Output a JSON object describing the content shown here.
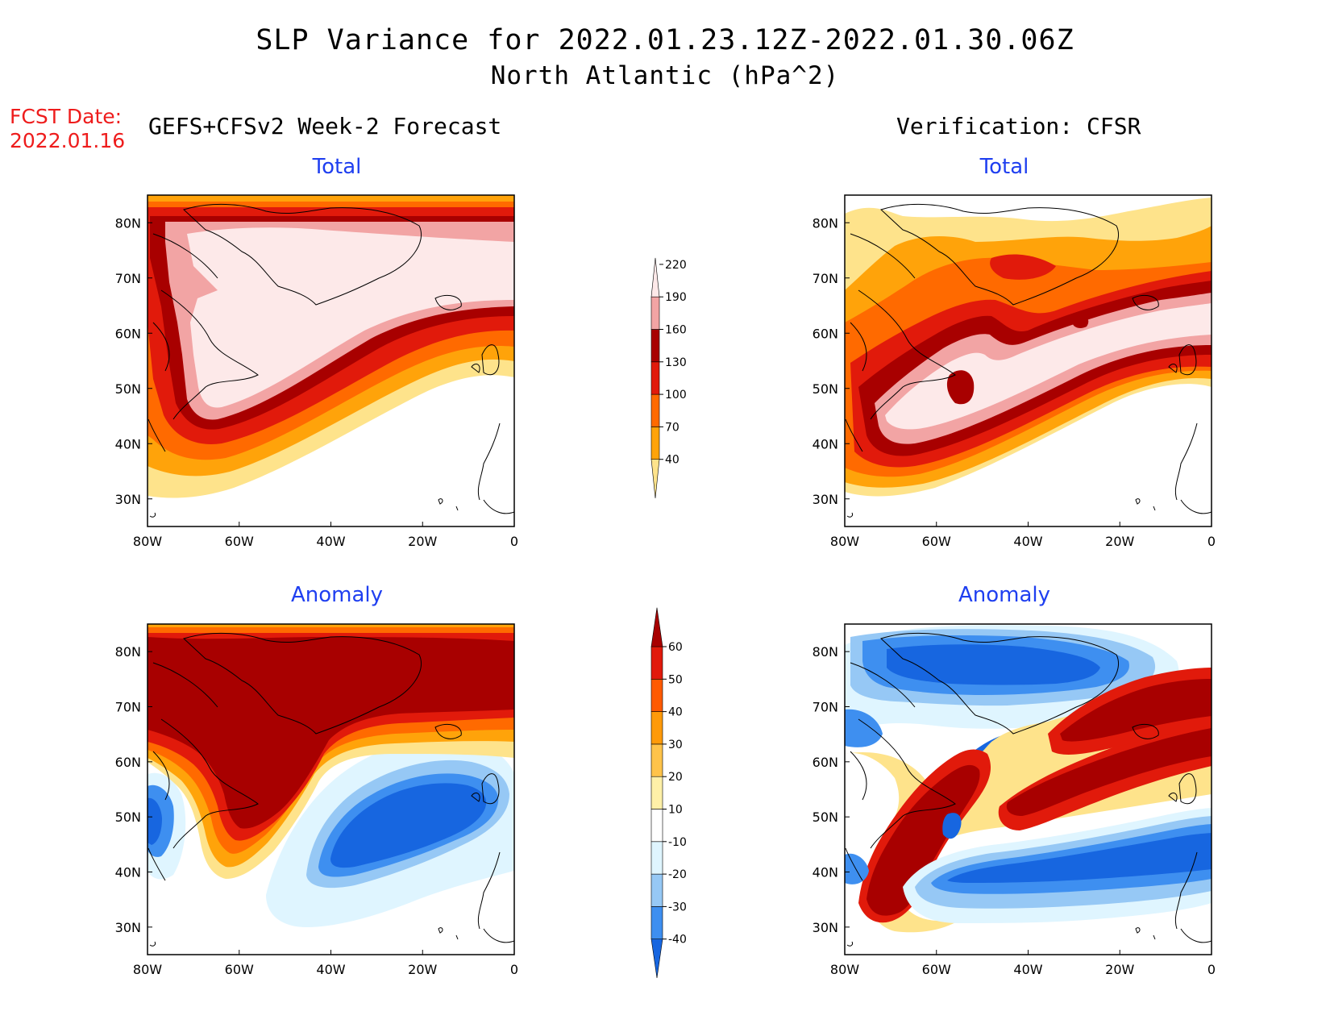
{
  "header": {
    "title_line1": "SLP Variance for 2022.01.23.12Z-2022.01.30.06Z",
    "title_line2": "North Atlantic (hPa^2)"
  },
  "fcst_label": {
    "line1": "FCST Date:",
    "line2": "2022.01.16"
  },
  "columns": {
    "left": "GEFS+CFSv2 Week-2 Forecast",
    "right": "Verification: CFSR"
  },
  "panels": {
    "top_left_title": "Total",
    "top_right_title": "Total",
    "bottom_left_title": "Anomaly",
    "bottom_right_title": "Anomaly"
  },
  "axes": {
    "lon_labels": [
      "80W",
      "60W",
      "40W",
      "20W",
      "0"
    ],
    "lat_labels": [
      "80N",
      "70N",
      "60N",
      "50N",
      "40N",
      "30N"
    ],
    "lon_range": [
      -80,
      0
    ],
    "lat_range": [
      25,
      85
    ]
  },
  "colorbars": {
    "total": {
      "levels": [
        "40",
        "70",
        "100",
        "130",
        "160",
        "190",
        "220"
      ],
      "colors": [
        "#fee38b",
        "#ffa30a",
        "#ff6a00",
        "#e11a0b",
        "#a80000",
        "#f2a4a4",
        "#fde9e9"
      ]
    },
    "anomaly": {
      "levels": [
        "-40",
        "-30",
        "-20",
        "-10",
        "10",
        "20",
        "30",
        "40",
        "50",
        "60"
      ],
      "colors": [
        "#1766e0",
        "#3e8ff0",
        "#96c8f5",
        "#dff5ff",
        "#ffffff",
        "#fff0a8",
        "#ffc34a",
        "#ff9a0a",
        "#ff5a00",
        "#e11a0b",
        "#a80000"
      ]
    }
  }
}
